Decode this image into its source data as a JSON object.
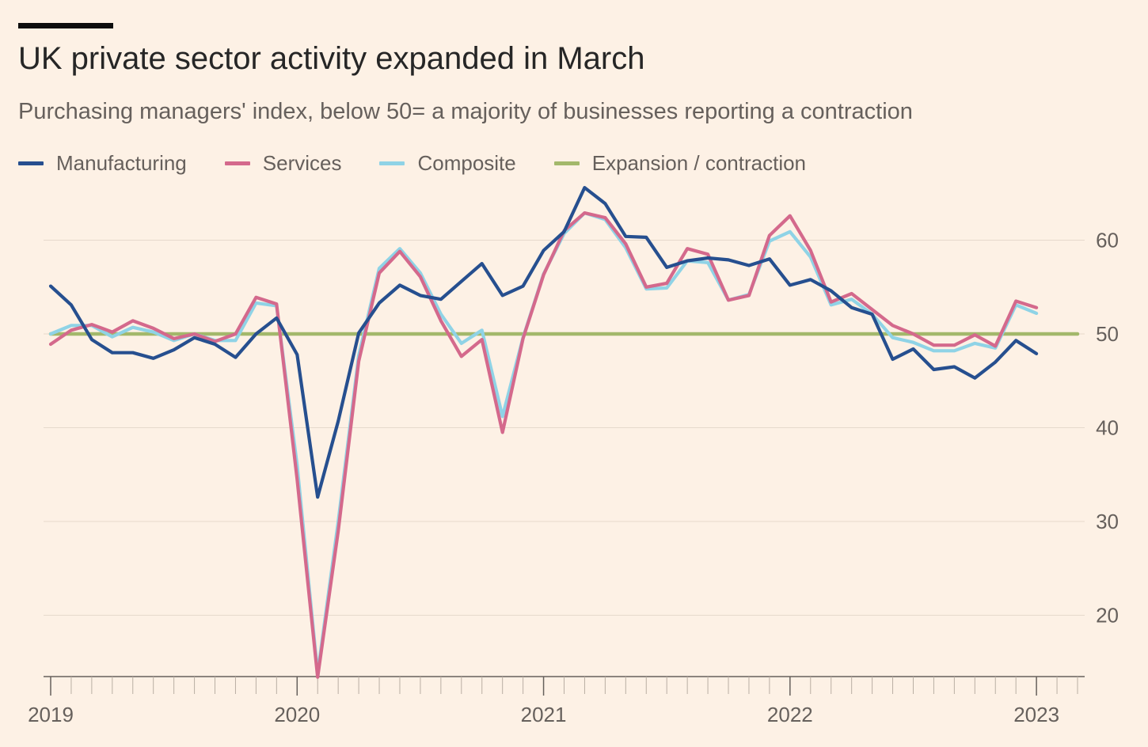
{
  "header": {
    "title": "UK private sector activity expanded in March",
    "subtitle": "Purchasing managers' index, below 50= a majority of businesses reporting a contraction"
  },
  "legend": [
    {
      "label": "Manufacturing",
      "color": "#264f8f"
    },
    {
      "label": "Services",
      "color": "#d4698c"
    },
    {
      "label": "Composite",
      "color": "#8fd3e6"
    },
    {
      "label": "Expansion / contraction",
      "color": "#a3b86b"
    }
  ],
  "chart_data": {
    "type": "line",
    "title": "UK private sector activity expanded in March",
    "subtitle": "Purchasing managers' index, below 50= a majority of businesses reporting a contraction",
    "xlabel": "",
    "ylabel": "",
    "x_start": "2019-01",
    "x_end": "2023-03",
    "x_ticks": [
      "2019",
      "2020",
      "2021",
      "2022",
      "2023"
    ],
    "y_ticks": [
      20,
      30,
      40,
      50,
      60
    ],
    "ylim": [
      13.5,
      66
    ],
    "grid": true,
    "y_axis_position": "right",
    "legend_position": "top-left",
    "series": [
      {
        "name": "Manufacturing",
        "color": "#264f8f",
        "values": [
          55.1,
          53.1,
          49.4,
          48.0,
          48.0,
          47.4,
          48.3,
          49.6,
          48.9,
          47.5,
          50.0,
          51.7,
          47.8,
          32.6,
          40.7,
          50.1,
          53.3,
          55.2,
          54.1,
          53.7,
          55.6,
          57.5,
          54.1,
          55.1,
          58.9,
          60.9,
          65.6,
          63.9,
          60.4,
          60.3,
          57.1,
          57.8,
          58.1,
          57.9,
          57.3,
          58.0,
          55.2,
          55.8,
          54.6,
          52.8,
          52.1,
          47.3,
          48.4,
          46.2,
          46.5,
          45.3,
          47.0,
          49.3,
          47.9
        ]
      },
      {
        "name": "Services",
        "color": "#d4698c",
        "values": [
          48.9,
          50.4,
          51.0,
          50.2,
          51.4,
          50.6,
          49.5,
          50.0,
          49.2,
          50.0,
          53.9,
          53.2,
          34.5,
          13.4,
          29.0,
          47.1,
          56.5,
          58.8,
          56.1,
          51.4,
          47.6,
          49.4,
          39.5,
          49.5,
          56.3,
          61.0,
          62.9,
          62.4,
          59.6,
          55.0,
          55.4,
          59.1,
          58.5,
          53.6,
          54.1,
          60.5,
          62.6,
          58.9,
          53.4,
          54.3,
          52.6,
          50.9,
          50.0,
          48.8,
          48.8,
          49.9,
          48.7,
          53.5,
          52.8
        ]
      },
      {
        "name": "Composite",
        "color": "#8fd3e6",
        "values": [
          50.0,
          50.9,
          50.9,
          49.7,
          50.7,
          50.2,
          49.3,
          50.0,
          49.3,
          49.3,
          53.3,
          53.0,
          36.0,
          13.8,
          30.0,
          47.7,
          57.0,
          59.1,
          56.5,
          52.1,
          49.0,
          50.4,
          41.2,
          49.6,
          56.4,
          60.7,
          62.9,
          62.2,
          59.2,
          54.8,
          54.9,
          57.8,
          57.6,
          53.6,
          54.2,
          59.9,
          60.9,
          58.2,
          53.1,
          53.7,
          52.1,
          49.6,
          49.1,
          48.2,
          48.2,
          49.0,
          48.5,
          53.1,
          52.2
        ]
      },
      {
        "name": "Expansion / contraction",
        "color": "#a3b86b",
        "values": [
          50,
          50
        ]
      }
    ]
  }
}
